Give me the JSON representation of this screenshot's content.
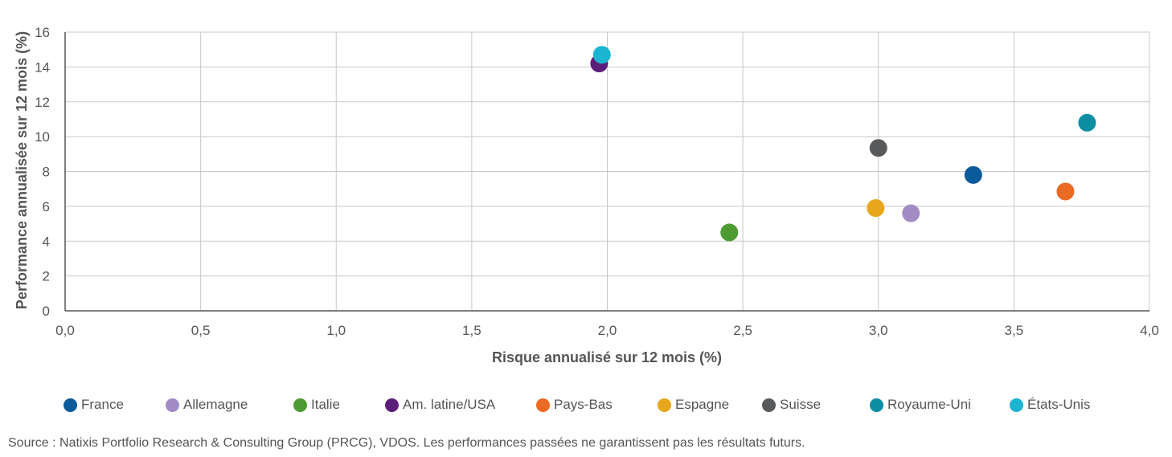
{
  "chart_data": {
    "type": "scatter",
    "xlabel": "Risque annualisé sur 12 mois (%)",
    "ylabel": "Performance annualisée sur 12 mois (%)",
    "xlim": [
      0,
      4
    ],
    "ylim": [
      0,
      16
    ],
    "x_ticks": [
      "0,0",
      "0,5",
      "1,0",
      "1,5",
      "2,0",
      "2,5",
      "3,0",
      "3,5",
      "4,0"
    ],
    "x_tick_values": [
      0,
      0.5,
      1,
      1.5,
      2,
      2.5,
      3,
      3.5,
      4
    ],
    "y_ticks": [
      "0",
      "2",
      "4",
      "6",
      "8",
      "10",
      "12",
      "14",
      "16"
    ],
    "y_tick_values": [
      0,
      2,
      4,
      6,
      8,
      10,
      12,
      14,
      16
    ],
    "grid": true,
    "legend_position": "bottom",
    "series": [
      {
        "name": "France",
        "x": 3.35,
        "y": 7.8,
        "color": "#0b5a9a"
      },
      {
        "name": "Allemagne",
        "x": 3.12,
        "y": 5.6,
        "color": "#a38cc4"
      },
      {
        "name": "Italie",
        "x": 2.45,
        "y": 4.5,
        "color": "#4e9a33"
      },
      {
        "name": "Am. latine/USA",
        "x": 1.97,
        "y": 14.2,
        "color": "#5b1f7a"
      },
      {
        "name": "Pays-Bas",
        "x": 3.69,
        "y": 6.85,
        "color": "#ec6b24"
      },
      {
        "name": "Espagne",
        "x": 2.99,
        "y": 5.9,
        "color": "#e8a61c"
      },
      {
        "name": "Suisse",
        "x": 3.0,
        "y": 9.35,
        "color": "#58595b"
      },
      {
        "name": "Royaume-Uni",
        "x": 3.77,
        "y": 10.8,
        "color": "#0e8ea3"
      },
      {
        "name": "États-Unis",
        "x": 1.98,
        "y": 14.7,
        "color": "#1bb5d1"
      }
    ]
  },
  "source": "Source : Natixis Portfolio Research & Consulting Group (PRCG), VDOS. Les performances passées ne garantissent pas les résultats futurs."
}
